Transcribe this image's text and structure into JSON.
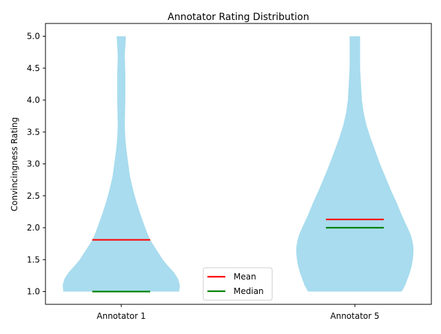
{
  "chart_data": {
    "type": "violin",
    "title": "Annotator Rating Distribution",
    "xlabel": "",
    "ylabel": "Convincingness Rating",
    "categories": [
      "Annotator 1",
      "Annotator 5"
    ],
    "ylim": [
      0.8,
      5.2
    ],
    "yticks": [
      "1.0",
      "1.5",
      "2.0",
      "2.5",
      "3.0",
      "3.5",
      "4.0",
      "4.5",
      "5.0"
    ],
    "grid": false,
    "legend_position": "lower-center",
    "legend": [
      {
        "label": "Mean",
        "color": "#ff0000"
      },
      {
        "label": "Median",
        "color": "#008000"
      }
    ],
    "fill_color": "#a8dcee",
    "series": [
      {
        "category": "Annotator 1",
        "mean": 1.81,
        "median": 1.0,
        "min": 1.0,
        "max": 5.0,
        "profile": [
          [
            1.0,
            0.99
          ],
          [
            1.1,
            1.0
          ],
          [
            1.2,
            0.97
          ],
          [
            1.3,
            0.9
          ],
          [
            1.4,
            0.8
          ],
          [
            1.5,
            0.71
          ],
          [
            1.6,
            0.64
          ],
          [
            1.7,
            0.57
          ],
          [
            1.8,
            0.5
          ],
          [
            1.9,
            0.45
          ],
          [
            2.0,
            0.41
          ],
          [
            2.2,
            0.33
          ],
          [
            2.4,
            0.26
          ],
          [
            2.6,
            0.2
          ],
          [
            2.8,
            0.15
          ],
          [
            3.0,
            0.12
          ],
          [
            3.2,
            0.09
          ],
          [
            3.4,
            0.07
          ],
          [
            3.6,
            0.06
          ],
          [
            4.0,
            0.07
          ],
          [
            4.4,
            0.07
          ],
          [
            4.7,
            0.06
          ],
          [
            5.0,
            0.08
          ]
        ]
      },
      {
        "category": "Annotator 5",
        "mean": 2.13,
        "median": 2.0,
        "min": 1.0,
        "max": 5.0,
        "profile": [
          [
            1.0,
            0.8
          ],
          [
            1.1,
            0.86
          ],
          [
            1.2,
            0.9
          ],
          [
            1.3,
            0.94
          ],
          [
            1.4,
            0.97
          ],
          [
            1.5,
            0.99
          ],
          [
            1.6,
            1.0
          ],
          [
            1.7,
            1.0
          ],
          [
            1.8,
            0.98
          ],
          [
            1.9,
            0.95
          ],
          [
            2.0,
            0.9
          ],
          [
            2.2,
            0.8
          ],
          [
            2.4,
            0.71
          ],
          [
            2.6,
            0.61
          ],
          [
            2.8,
            0.52
          ],
          [
            3.0,
            0.43
          ],
          [
            3.2,
            0.35
          ],
          [
            3.4,
            0.27
          ],
          [
            3.6,
            0.2
          ],
          [
            3.8,
            0.15
          ],
          [
            4.0,
            0.12
          ],
          [
            4.5,
            0.09
          ],
          [
            5.0,
            0.09
          ]
        ]
      }
    ]
  }
}
